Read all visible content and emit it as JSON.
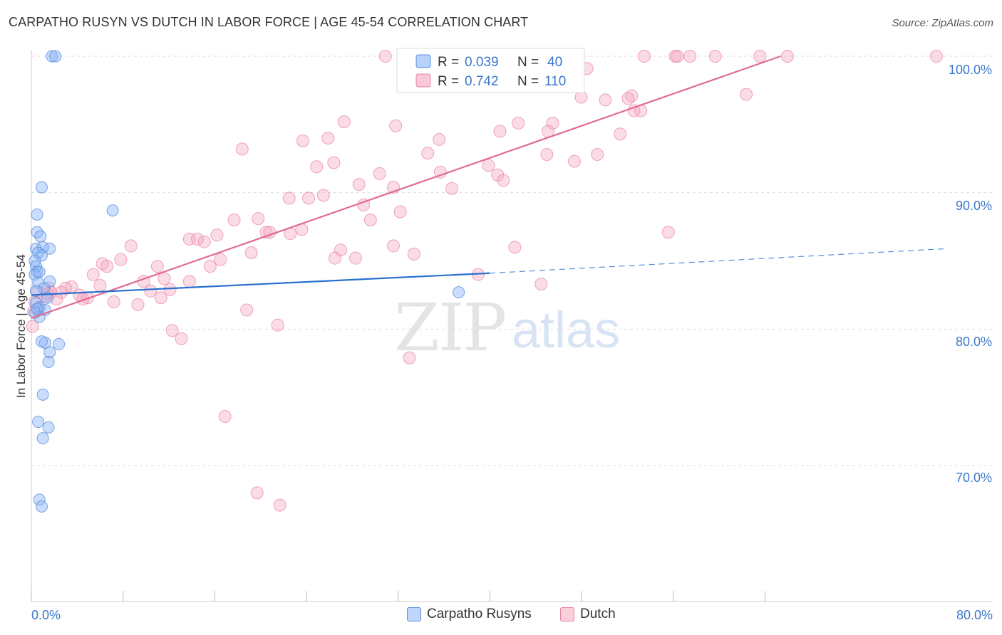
{
  "header": {
    "title": "CARPATHO RUSYN VS DUTCH IN LABOR FORCE | AGE 45-54 CORRELATION CHART",
    "source": "Source: ZipAtlas.com"
  },
  "watermark": {
    "zip": "ZIP",
    "atlas": "atlas"
  },
  "legend_box": {
    "rows": [
      {
        "r_label": "R = ",
        "r_value": "0.039",
        "n_label": "N = ",
        "n_value": "40",
        "color": "#8ab4f8"
      },
      {
        "r_label": "R = ",
        "r_value": "0.742",
        "n_label": "N = ",
        "n_value": "110",
        "color": "#f4a7bf"
      }
    ]
  },
  "bottom_legend": [
    {
      "label": "Carpatho Rusyns",
      "color": "#8ab4f8"
    },
    {
      "label": "Dutch",
      "color": "#f4a7bf"
    }
  ],
  "colors": {
    "blue_fill": "#8ab4f8",
    "blue_stroke": "#5b8fd9",
    "blue_line": "#2a6fd0",
    "pink_fill": "#f4a7bf",
    "pink_stroke": "#e8809f",
    "pink_line": "#e06a94",
    "axis_label": "#3b78c9",
    "grid": "#dddddd"
  },
  "chart_data": {
    "type": "scatter",
    "title": "CARPATHO RUSYN VS DUTCH IN LABOR FORCE | AGE 45-54 CORRELATION CHART",
    "xlabel": "",
    "ylabel": "In Labor Force | Age 45-54",
    "xlim": [
      0,
      80
    ],
    "ylim": [
      61.5,
      101.5
    ],
    "x_tick_labels": [
      {
        "value": 0,
        "label": "0.0%"
      },
      {
        "value": 80,
        "label": "80.0%"
      }
    ],
    "y_tick_labels": [
      {
        "value": 100,
        "label": "100.0%"
      },
      {
        "value": 90,
        "label": "90.0%"
      },
      {
        "value": 80,
        "label": "80.0%"
      },
      {
        "value": 70,
        "label": "70.0%"
      }
    ],
    "grid": true,
    "legend_position": "top-center",
    "series": [
      {
        "name": "Carpatho Rusyns",
        "r": 0.039,
        "n": 40,
        "trend": {
          "solid": [
            [
              0,
              82.5
            ],
            [
              40,
              84.1
            ]
          ],
          "dashed": [
            [
              40,
              84.1
            ],
            [
              80,
              85.9
            ]
          ]
        },
        "points": [
          [
            1.8,
            100
          ],
          [
            2.1,
            100
          ],
          [
            0.9,
            90.4
          ],
          [
            7.1,
            88.7
          ],
          [
            0.5,
            88.4
          ],
          [
            0.5,
            87.1
          ],
          [
            0.8,
            86.8
          ],
          [
            1.6,
            85.9
          ],
          [
            0.4,
            85.9
          ],
          [
            1.0,
            86.0
          ],
          [
            0.6,
            85.6
          ],
          [
            0.9,
            85.4
          ],
          [
            0.3,
            85.0
          ],
          [
            0.4,
            84.6
          ],
          [
            0.5,
            84.2
          ],
          [
            0.3,
            84.0
          ],
          [
            0.7,
            84.2
          ],
          [
            1.6,
            83.5
          ],
          [
            0.6,
            83.4
          ],
          [
            1.1,
            83.0
          ],
          [
            0.4,
            82.8
          ],
          [
            1.4,
            82.3
          ],
          [
            0.4,
            81.9
          ],
          [
            0.7,
            81.6
          ],
          [
            1.2,
            81.4
          ],
          [
            0.3,
            81.2
          ],
          [
            0.7,
            80.9
          ],
          [
            0.5,
            81.5
          ],
          [
            1.2,
            79.0
          ],
          [
            0.9,
            79.1
          ],
          [
            2.4,
            78.9
          ],
          [
            1.6,
            78.3
          ],
          [
            1.5,
            77.6
          ],
          [
            1.0,
            75.2
          ],
          [
            0.6,
            73.2
          ],
          [
            1.5,
            72.8
          ],
          [
            1.0,
            72.0
          ],
          [
            0.7,
            67.5
          ],
          [
            0.9,
            67.0
          ],
          [
            37.3,
            82.7
          ]
        ]
      },
      {
        "name": "Dutch",
        "r": 0.742,
        "n": 110,
        "trend": {
          "solid": [
            [
              0,
              80.8
            ],
            [
              65.4,
              100
            ]
          ]
        },
        "points": [
          [
            30.9,
            100
          ],
          [
            39.8,
            100
          ],
          [
            40.1,
            100
          ],
          [
            53.5,
            100
          ],
          [
            56.2,
            100
          ],
          [
            56.4,
            100
          ],
          [
            57.5,
            100
          ],
          [
            59.7,
            100
          ],
          [
            63.6,
            100
          ],
          [
            66.0,
            100
          ],
          [
            79.0,
            100
          ],
          [
            48.5,
            99.1
          ],
          [
            48.0,
            97.0
          ],
          [
            50.1,
            96.8
          ],
          [
            52.4,
            97.1
          ],
          [
            52.1,
            96.9
          ],
          [
            52.6,
            96.0
          ],
          [
            53.2,
            96.0
          ],
          [
            62.4,
            97.2
          ],
          [
            27.3,
            95.2
          ],
          [
            31.8,
            94.9
          ],
          [
            42.5,
            95.1
          ],
          [
            45.5,
            95.1
          ],
          [
            40.9,
            94.5
          ],
          [
            45.1,
            94.5
          ],
          [
            51.4,
            94.3
          ],
          [
            25.9,
            94.0
          ],
          [
            23.7,
            93.8
          ],
          [
            35.6,
            93.9
          ],
          [
            18.4,
            93.2
          ],
          [
            34.6,
            92.9
          ],
          [
            45.0,
            92.8
          ],
          [
            49.4,
            92.8
          ],
          [
            47.4,
            92.3
          ],
          [
            26.4,
            92.2
          ],
          [
            24.9,
            91.9
          ],
          [
            39.9,
            92.0
          ],
          [
            30.4,
            91.4
          ],
          [
            35.7,
            91.5
          ],
          [
            40.7,
            91.3
          ],
          [
            41.2,
            90.9
          ],
          [
            28.6,
            90.6
          ],
          [
            31.6,
            90.4
          ],
          [
            36.7,
            90.3
          ],
          [
            22.5,
            89.6
          ],
          [
            24.2,
            89.6
          ],
          [
            25.5,
            89.8
          ],
          [
            29.0,
            89.1
          ],
          [
            32.2,
            88.6
          ],
          [
            17.7,
            88.0
          ],
          [
            19.8,
            88.1
          ],
          [
            29.6,
            88.0
          ],
          [
            23.6,
            87.3
          ],
          [
            20.5,
            87.1
          ],
          [
            20.8,
            87.1
          ],
          [
            22.6,
            87.0
          ],
          [
            55.6,
            87.1
          ],
          [
            16.2,
            86.9
          ],
          [
            13.8,
            86.6
          ],
          [
            14.5,
            86.6
          ],
          [
            15.1,
            86.4
          ],
          [
            8.7,
            86.1
          ],
          [
            31.6,
            86.1
          ],
          [
            42.2,
            86.0
          ],
          [
            19.2,
            85.6
          ],
          [
            27.0,
            85.8
          ],
          [
            33.4,
            85.5
          ],
          [
            7.8,
            85.1
          ],
          [
            6.2,
            84.8
          ],
          [
            11.0,
            84.6
          ],
          [
            26.5,
            85.2
          ],
          [
            28.3,
            85.2
          ],
          [
            6.6,
            84.6
          ],
          [
            15.6,
            84.6
          ],
          [
            16.5,
            85.1
          ],
          [
            5.4,
            84.0
          ],
          [
            11.6,
            83.7
          ],
          [
            13.8,
            83.5
          ],
          [
            39.0,
            84.0
          ],
          [
            44.5,
            83.3
          ],
          [
            9.8,
            83.5
          ],
          [
            3.0,
            83.0
          ],
          [
            3.5,
            83.1
          ],
          [
            6.0,
            83.2
          ],
          [
            10.4,
            82.8
          ],
          [
            12.1,
            82.9
          ],
          [
            1.5,
            83.0
          ],
          [
            2.6,
            82.7
          ],
          [
            1.7,
            82.7
          ],
          [
            4.2,
            82.5
          ],
          [
            4.9,
            82.3
          ],
          [
            4.5,
            82.2
          ],
          [
            1.2,
            82.4
          ],
          [
            2.2,
            82.2
          ],
          [
            7.2,
            82.0
          ],
          [
            9.3,
            81.8
          ],
          [
            11.3,
            82.3
          ],
          [
            0.5,
            82.7
          ],
          [
            1.4,
            82.6
          ],
          [
            0.3,
            82.0
          ],
          [
            0.6,
            81.5
          ],
          [
            0.2,
            81.3
          ],
          [
            0.1,
            80.2
          ],
          [
            18.8,
            81.4
          ],
          [
            21.5,
            80.3
          ],
          [
            12.3,
            79.9
          ],
          [
            13.1,
            79.3
          ],
          [
            33.0,
            77.9
          ],
          [
            16.9,
            73.6
          ],
          [
            19.7,
            68.0
          ],
          [
            21.7,
            67.1
          ]
        ]
      }
    ]
  },
  "axes_text": {
    "y_title": "In Labor Force | Age 45-54",
    "x_min_label": "0.0%",
    "x_max_label": "80.0%",
    "y_labels": [
      "100.0%",
      "90.0%",
      "80.0%",
      "70.0%"
    ]
  }
}
